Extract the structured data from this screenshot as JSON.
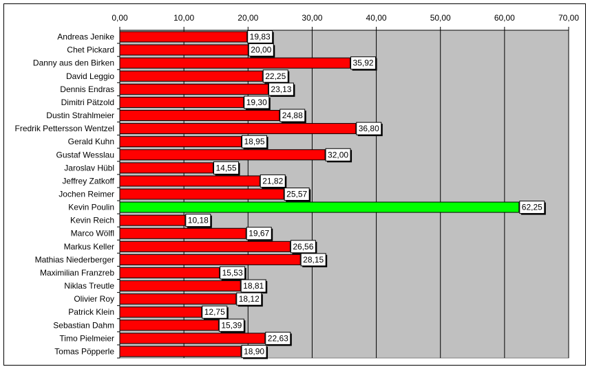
{
  "chart_data": {
    "type": "bar",
    "orientation": "horizontal",
    "title": "",
    "xlabel": "",
    "ylabel": "",
    "xlim": [
      0,
      70
    ],
    "x_ticks": [
      0,
      10,
      20,
      30,
      40,
      50,
      60,
      70
    ],
    "x_tick_labels": [
      "0,00",
      "10,00",
      "20,00",
      "30,00",
      "40,00",
      "50,00",
      "60,00",
      "70,00"
    ],
    "x_axis_position": "top",
    "grid": "vertical major gridlines",
    "plot_background": "#c0c0c0",
    "legend": "none",
    "bar_color": "#ff0000",
    "highlight_color": "#00ff00",
    "highlight_category": "Kevin Poulin",
    "categories": [
      "Andreas Jenike",
      "Chet Pickard",
      "Danny aus den Birken",
      "David Leggio",
      "Dennis Endras",
      "Dimitri Pätzold",
      "Dustin Strahlmeier",
      "Fredrik Pettersson Wentzel",
      "Gerald Kuhn",
      "Gustaf Wesslau",
      "Jaroslav Hübl",
      "Jeffrey Zatkoff",
      "Jochen Reimer",
      "Kevin Poulin",
      "Kevin Reich",
      "Marco Wölfl",
      "Markus Keller",
      "Mathias Niederberger",
      "Maximilian Franzreb",
      "Niklas Treutle",
      "Olivier Roy",
      "Patrick Klein",
      "Sebastian Dahm",
      "Timo Pielmeier",
      "Tomas Pöpperle"
    ],
    "values": [
      19.83,
      20.0,
      35.92,
      22.25,
      23.13,
      19.3,
      24.88,
      36.8,
      18.95,
      32.0,
      14.55,
      21.82,
      25.57,
      62.25,
      10.18,
      19.67,
      26.56,
      28.15,
      15.53,
      18.81,
      18.12,
      12.75,
      15.39,
      22.63,
      18.9
    ],
    "value_labels": [
      "19,83",
      "20,00",
      "35,92",
      "22,25",
      "23,13",
      "19,30",
      "24,88",
      "36,80",
      "18,95",
      "32,00",
      "14,55",
      "21,82",
      "25,57",
      "62,25",
      "10,18",
      "19,67",
      "26,56",
      "28,15",
      "15,53",
      "18,81",
      "18,12",
      "12,75",
      "15,39",
      "22,63",
      "18,90"
    ]
  }
}
